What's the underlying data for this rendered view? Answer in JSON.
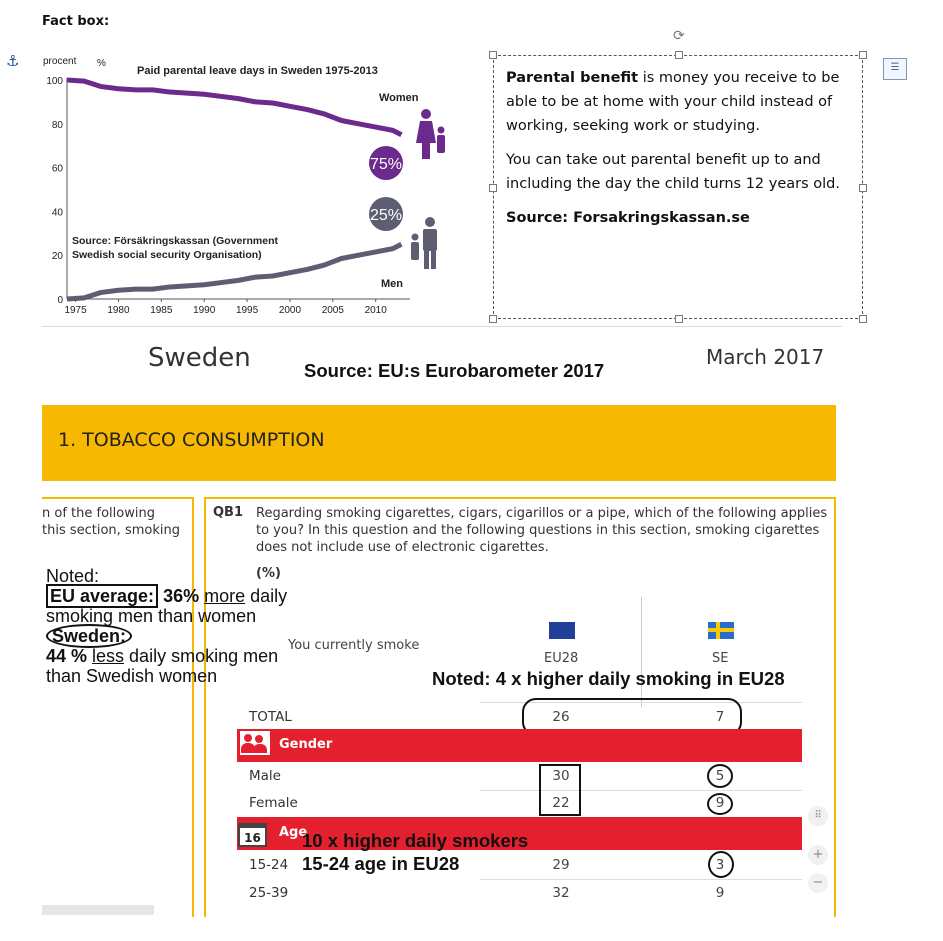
{
  "fact_box_title": "Fact box:",
  "chart": {
    "unit_left": "procent",
    "unit_right": "%",
    "title": "Paid parental leave days in Sweden 1975-2013",
    "women_label": "Women",
    "men_label": "Men",
    "women_badge": "75%",
    "men_badge": "25%",
    "source_line1": "Source: Försäkringskassan (Government",
    "source_line2": "Swedish social security Organisation)",
    "ytick_labels": [
      "100",
      "80",
      "60",
      "40",
      "20",
      "0"
    ],
    "xtick_labels": [
      "1975",
      "1980",
      "1985",
      "1990",
      "1995",
      "2000",
      "2005",
      "2010"
    ]
  },
  "chart_data": {
    "type": "line",
    "title": "Paid parental leave days in Sweden 1975-2013",
    "ylabel": "procent",
    "ylim": [
      0,
      100
    ],
    "x": [
      1974,
      1976,
      1978,
      1980,
      1982,
      1984,
      1986,
      1988,
      1990,
      1992,
      1994,
      1996,
      1998,
      2000,
      2002,
      2004,
      2006,
      2008,
      2010,
      2012,
      2013
    ],
    "series": [
      {
        "name": "Women",
        "color": "#6b2a8c",
        "values": [
          100,
          99.5,
          97,
          96,
          95.5,
          95.5,
          94.5,
          94,
          93.5,
          92.5,
          91.5,
          90,
          89.5,
          88,
          86.5,
          84.5,
          81.5,
          80,
          78.5,
          77,
          75
        ]
      },
      {
        "name": "Men",
        "color": "#5e5e72",
        "values": [
          0,
          0.5,
          3,
          4,
          4.5,
          4.5,
          5.5,
          6,
          6.5,
          7.5,
          8.5,
          10,
          10.5,
          12,
          13.5,
          15.5,
          18.5,
          20,
          21.5,
          23,
          25
        ]
      }
    ]
  },
  "textbox": {
    "p1_bold": "Parental benefit",
    "p1_rest": " is money you receive to be able to be at home with your child instead of working, seeking work or studying.",
    "p2": "You can take out parental benefit up to and including the day the child turns 12 years old.",
    "source": "Source: Forsakringskassan.se"
  },
  "header": {
    "country": "Sweden",
    "date": "March 2017",
    "source": "Source: EU:s Eurobarometer 2017"
  },
  "section": {
    "title": "1. TOBACCO CONSUMPTION"
  },
  "left_partial": [
    "n of the following",
    "this section, smoking"
  ],
  "question": {
    "code": "QB1",
    "text": "Regarding smoking cigarettes, cigars, cigarillos or a pipe, which of the following applies to you? In this question and the following questions in this section, smoking cigarettes does not include use of electronic cigarettes.",
    "unit": "(%)",
    "row_header": "You currently smoke"
  },
  "annotations": {
    "noted": "Noted:",
    "eu_avg_box": "EU average:",
    "eu_avg_rest1": " 36% ",
    "eu_avg_more": "more",
    "eu_avg_rest2": " daily",
    "eu_line2": "smoking men than women",
    "sweden_oval": "Sweden:",
    "sweden_pct": "44 % ",
    "sweden_less": "less",
    "sweden_rest": " daily smoking men",
    "sweden_line2": "than Swedish women",
    "noted_4x": "Noted: 4 x higher daily smoking in EU28",
    "age_10x": "10 x higher daily smokers",
    "age_15_24": "15-24 age in EU28"
  },
  "table": {
    "col_eu": "EU28",
    "col_se": "SE",
    "total_label": "TOTAL",
    "total_eu": "26",
    "total_se": "7",
    "gender_header": "Gender",
    "male_label": "Male",
    "male_eu": "30",
    "male_se": "5",
    "female_label": "Female",
    "female_eu": "22",
    "female_se": "9",
    "age_header": "Age",
    "age_icon_text": "16",
    "age1_label": "15-24",
    "age1_eu": "29",
    "age1_se": "3",
    "age2_label": "25-39",
    "age2_eu": "32",
    "age2_se": "9"
  },
  "controls": {
    "zoom_in": "+",
    "zoom_out": "−",
    "drag": "⠿"
  }
}
